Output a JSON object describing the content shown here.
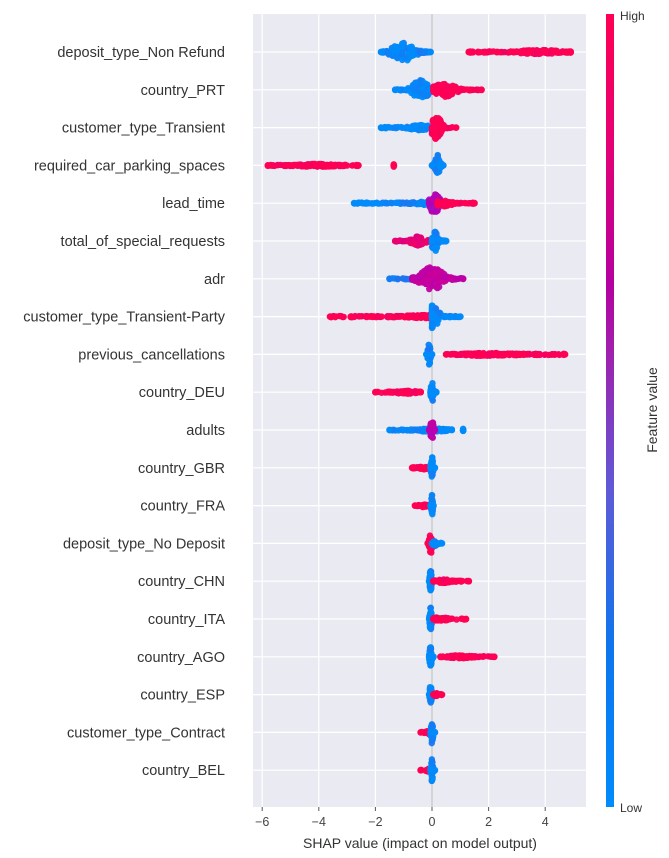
{
  "chart_data": {
    "type": "scatter",
    "subtype": "shap-beeswarm-summary",
    "xlabel": "SHAP value (impact on model output)",
    "xlim": [
      -6.3,
      5.4
    ],
    "xticks": [
      -6,
      -4,
      -2,
      0,
      2,
      4
    ],
    "xtick_labels": [
      "−6",
      "−4",
      "−2",
      "0",
      "2",
      "4"
    ],
    "grid": true,
    "colorbar": {
      "title": "Feature value",
      "high_label": "High",
      "low_label": "Low",
      "high_color": "#ff0052",
      "mid_color": "#b200b8",
      "low_color": "#008bfb",
      "placement": "right"
    },
    "features": [
      {
        "name": "deposit_type_Non Refund",
        "clusters": [
          {
            "min": -1.8,
            "max": -0.05,
            "peak": -1.0,
            "spread": 0.7,
            "color": 0.0
          },
          {
            "min": 1.3,
            "max": 4.9,
            "peak": 3.8,
            "spread": 0.15,
            "color": 1.0
          }
        ]
      },
      {
        "name": "country_PRT",
        "clusters": [
          {
            "min": -1.3,
            "max": -0.05,
            "peak": -0.4,
            "spread": 0.75,
            "color": 0.0
          },
          {
            "min": 0.05,
            "max": 1.75,
            "peak": 0.45,
            "spread": 0.55,
            "color": 1.0
          }
        ]
      },
      {
        "name": "customer_type_Transient",
        "clusters": [
          {
            "min": -1.8,
            "max": 0.0,
            "peak": -0.4,
            "spread": 0.2,
            "color": 0.0
          },
          {
            "min": 0.0,
            "max": 0.85,
            "peak": 0.15,
            "spread": 0.9,
            "color": 1.0
          }
        ]
      },
      {
        "name": "required_car_parking_spaces",
        "clusters": [
          {
            "min": -5.8,
            "max": -2.6,
            "peak": -4.0,
            "spread": 0.12,
            "color": 1.0
          },
          {
            "min": -1.35,
            "max": -1.35,
            "peak": -1.35,
            "spread": 0.1,
            "color": 1.0
          },
          {
            "min": 0.0,
            "max": 0.4,
            "peak": 0.2,
            "spread": 0.8,
            "color": 0.0
          }
        ]
      },
      {
        "name": "lead_time",
        "clusters": [
          {
            "min": -2.75,
            "max": 0.0,
            "peak": 0.0,
            "spread": 0.15,
            "color": 0.0
          },
          {
            "min": -0.1,
            "max": 0.6,
            "peak": 0.1,
            "spread": 0.9,
            "color": 0.5
          },
          {
            "min": 0.2,
            "max": 1.5,
            "peak": 0.4,
            "spread": 0.25,
            "color": 1.0
          }
        ]
      },
      {
        "name": "total_of_special_requests",
        "clusters": [
          {
            "min": -1.3,
            "max": -0.1,
            "peak": -0.5,
            "spread": 0.35,
            "color": 0.85
          },
          {
            "min": 0.0,
            "max": 0.5,
            "peak": 0.1,
            "spread": 0.8,
            "color": 0.0
          }
        ]
      },
      {
        "name": "adr",
        "clusters": [
          {
            "min": -1.5,
            "max": 0.0,
            "peak": -0.2,
            "spread": 0.2,
            "color": 0.05
          },
          {
            "min": -0.7,
            "max": 1.1,
            "peak": 0.0,
            "spread": 0.9,
            "color": 0.6
          }
        ]
      },
      {
        "name": "customer_type_Transient-Party",
        "clusters": [
          {
            "min": -3.6,
            "max": -0.1,
            "peak": -0.3,
            "spread": 0.12,
            "color": 1.0
          },
          {
            "min": 0.0,
            "max": 1.0,
            "peak": 0.0,
            "spread": 0.9,
            "color": 0.0
          }
        ]
      },
      {
        "name": "previous_cancellations",
        "clusters": [
          {
            "min": -0.2,
            "max": 0.0,
            "peak": -0.1,
            "spread": 0.9,
            "color": 0.0
          },
          {
            "min": 0.5,
            "max": 4.7,
            "peak": 2.0,
            "spread": 0.12,
            "color": 1.0
          }
        ]
      },
      {
        "name": "country_DEU",
        "clusters": [
          {
            "min": -2.0,
            "max": -0.4,
            "peak": -0.9,
            "spread": 0.12,
            "color": 1.0
          },
          {
            "min": -0.05,
            "max": 0.15,
            "peak": 0.0,
            "spread": 0.9,
            "color": 0.0
          }
        ]
      },
      {
        "name": "adults",
        "clusters": [
          {
            "min": -1.5,
            "max": 0.7,
            "peak": 0.0,
            "spread": 0.15,
            "color": 0.0
          },
          {
            "min": -0.1,
            "max": 0.1,
            "peak": 0.0,
            "spread": 0.9,
            "color": 0.55
          },
          {
            "min": 1.1,
            "max": 1.1,
            "peak": 1.1,
            "spread": 0.1,
            "color": 0.0
          }
        ]
      },
      {
        "name": "country_GBR",
        "clusters": [
          {
            "min": -0.7,
            "max": -0.1,
            "peak": -0.3,
            "spread": 0.12,
            "color": 1.0
          },
          {
            "min": -0.05,
            "max": 0.1,
            "peak": 0.0,
            "spread": 0.9,
            "color": 0.0
          }
        ]
      },
      {
        "name": "country_FRA",
        "clusters": [
          {
            "min": -0.6,
            "max": -0.1,
            "peak": -0.3,
            "spread": 0.12,
            "color": 1.0
          },
          {
            "min": -0.05,
            "max": 0.05,
            "peak": 0.0,
            "spread": 0.9,
            "color": 0.0
          }
        ]
      },
      {
        "name": "deposit_type_No Deposit",
        "clusters": [
          {
            "min": -0.15,
            "max": 0.05,
            "peak": -0.05,
            "spread": 0.9,
            "color": 1.0
          },
          {
            "min": 0.0,
            "max": 0.35,
            "peak": 0.1,
            "spread": 0.2,
            "color": 0.0
          }
        ]
      },
      {
        "name": "country_CHN",
        "clusters": [
          {
            "min": -0.1,
            "max": 0.05,
            "peak": -0.05,
            "spread": 0.9,
            "color": 0.0
          },
          {
            "min": 0.05,
            "max": 1.3,
            "peak": 0.4,
            "spread": 0.15,
            "color": 1.0
          }
        ]
      },
      {
        "name": "country_ITA",
        "clusters": [
          {
            "min": -0.1,
            "max": 0.05,
            "peak": -0.05,
            "spread": 0.9,
            "color": 0.0
          },
          {
            "min": 0.05,
            "max": 1.2,
            "peak": 0.3,
            "spread": 0.15,
            "color": 1.0
          }
        ]
      },
      {
        "name": "country_AGO",
        "clusters": [
          {
            "min": -0.1,
            "max": 0.05,
            "peak": -0.05,
            "spread": 0.9,
            "color": 0.0
          },
          {
            "min": 0.3,
            "max": 2.2,
            "peak": 1.0,
            "spread": 0.12,
            "color": 1.0
          }
        ]
      },
      {
        "name": "country_ESP",
        "clusters": [
          {
            "min": -0.1,
            "max": 0.05,
            "peak": -0.05,
            "spread": 0.9,
            "color": 0.0
          },
          {
            "min": 0.05,
            "max": 0.35,
            "peak": 0.15,
            "spread": 0.15,
            "color": 1.0
          }
        ]
      },
      {
        "name": "customer_type_Contract",
        "clusters": [
          {
            "min": -0.4,
            "max": 0.1,
            "peak": -0.1,
            "spread": 0.15,
            "color": 1.0
          },
          {
            "min": -0.05,
            "max": 0.1,
            "peak": 0.0,
            "spread": 0.9,
            "color": 0.0
          }
        ]
      },
      {
        "name": "country_BEL",
        "clusters": [
          {
            "min": -0.4,
            "max": 0.05,
            "peak": -0.1,
            "spread": 0.15,
            "color": 1.0
          },
          {
            "min": -0.05,
            "max": 0.1,
            "peak": 0.0,
            "spread": 0.9,
            "color": 0.0
          }
        ]
      }
    ]
  }
}
